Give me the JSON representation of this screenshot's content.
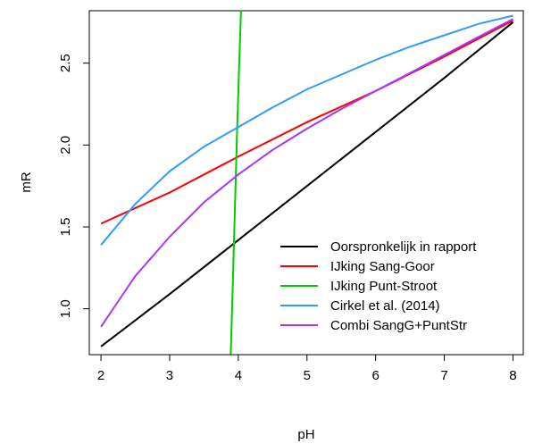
{
  "chart_data": {
    "type": "line",
    "title": "",
    "xlabel": "pH",
    "ylabel": "mR",
    "xlim": [
      1.83,
      8.15
    ],
    "ylim": [
      0.72,
      2.82
    ],
    "xticks": [
      2,
      3,
      4,
      5,
      6,
      7,
      8
    ],
    "yticks": [
      1.0,
      1.5,
      2.0,
      2.5
    ],
    "xtick_labels": [
      "2",
      "3",
      "4",
      "5",
      "6",
      "7",
      "8"
    ],
    "ytick_labels": [
      "1.0",
      "1.5",
      "2.0",
      "2.5"
    ],
    "grid": false,
    "legend_position": "bottom-right",
    "series": [
      {
        "name": "Oorspronkelijk in rapport",
        "color": "#000000",
        "x": [
          2,
          3,
          4,
          5,
          6,
          7,
          8
        ],
        "y": [
          0.77,
          1.09,
          1.42,
          1.75,
          2.08,
          2.41,
          2.75
        ]
      },
      {
        "name": "IJking Sang-Goor",
        "color": "#ff0000",
        "x": [
          2,
          3,
          4,
          5,
          6,
          7,
          8
        ],
        "y": [
          1.52,
          1.71,
          1.93,
          2.14,
          2.33,
          2.54,
          2.76
        ]
      },
      {
        "name": "IJking Punt-Stroot",
        "color": "#00cc00",
        "x": [
          3.89,
          3.92,
          3.95,
          3.98,
          4.01,
          4.04
        ],
        "y": [
          0.72,
          1.15,
          1.6,
          2.05,
          2.45,
          2.82
        ]
      },
      {
        "name": "Cirkel et al. (2014)",
        "color": "#3399ff",
        "x": [
          2,
          2.5,
          3,
          3.5,
          4,
          4.5,
          5,
          5.5,
          6,
          6.5,
          7,
          7.5,
          8
        ],
        "y": [
          1.39,
          1.64,
          1.84,
          1.99,
          2.11,
          2.23,
          2.34,
          2.43,
          2.52,
          2.6,
          2.67,
          2.74,
          2.79
        ]
      },
      {
        "name": "Combi SangG+PuntStr",
        "color": "#aa33ff",
        "x": [
          2,
          2.5,
          3,
          3.5,
          4,
          4.5,
          5,
          5.5,
          6,
          6.5,
          7,
          7.5,
          8
        ],
        "y": [
          0.89,
          1.2,
          1.44,
          1.65,
          1.82,
          1.97,
          2.1,
          2.22,
          2.33,
          2.44,
          2.55,
          2.66,
          2.77
        ]
      }
    ]
  }
}
